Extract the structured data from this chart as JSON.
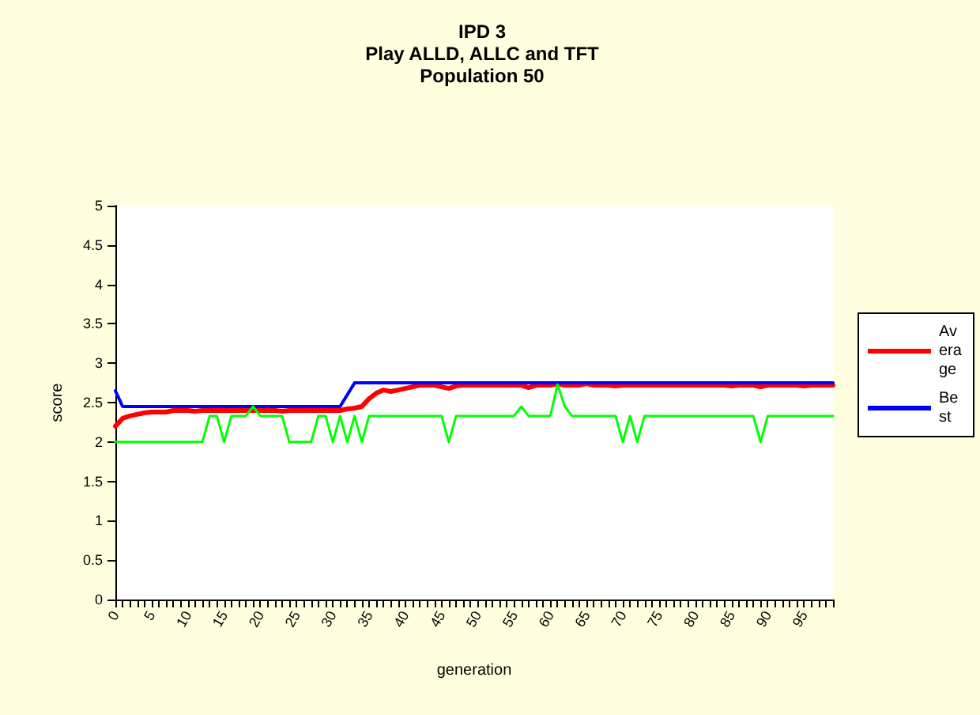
{
  "chart_data": {
    "type": "line",
    "title": "IPD 3\nPlay ALLD, ALLC and TFT\nPopulation 50",
    "xlabel": "generation",
    "ylabel": "score",
    "categories": [
      "0",
      null,
      null,
      null,
      null,
      "5",
      null,
      null,
      null,
      null,
      "10",
      null,
      null,
      null,
      null,
      "15",
      null,
      null,
      null,
      null,
      "20",
      null,
      null,
      null,
      null,
      "25",
      null,
      null,
      null,
      null,
      "30",
      null,
      null,
      null,
      null,
      "35",
      null,
      null,
      null,
      null,
      "40",
      null,
      null,
      null,
      null,
      "45",
      null,
      null,
      null,
      null,
      "50",
      null,
      null,
      null,
      null,
      "55",
      null,
      null,
      null,
      null,
      "60",
      null,
      null,
      null,
      null,
      "65",
      null,
      null,
      null,
      null,
      "70",
      null,
      null,
      null,
      null,
      "75",
      null,
      null,
      null,
      null,
      "80",
      null,
      null,
      null,
      null,
      "85",
      null,
      null,
      null,
      null,
      "90",
      null,
      null,
      null,
      null,
      "95",
      null,
      null,
      null,
      null
    ],
    "series": [
      {
        "name": "Average",
        "color": "#ff0000",
        "values": [
          2.2,
          2.3,
          2.33,
          2.35,
          2.37,
          2.38,
          2.38,
          2.38,
          2.4,
          2.4,
          2.4,
          2.39,
          2.4,
          2.4,
          2.4,
          2.4,
          2.4,
          2.4,
          2.4,
          2.4,
          2.4,
          2.4,
          2.4,
          2.39,
          2.4,
          2.4,
          2.4,
          2.4,
          2.4,
          2.4,
          2.4,
          2.4,
          2.42,
          2.43,
          2.45,
          2.55,
          2.62,
          2.66,
          2.64,
          2.66,
          2.68,
          2.7,
          2.72,
          2.72,
          2.72,
          2.7,
          2.68,
          2.71,
          2.72,
          2.72,
          2.72,
          2.72,
          2.72,
          2.72,
          2.72,
          2.72,
          2.72,
          2.69,
          2.72,
          2.72,
          2.72,
          2.74,
          2.72,
          2.72,
          2.72,
          2.74,
          2.72,
          2.72,
          2.72,
          2.71,
          2.72,
          2.72,
          2.72,
          2.72,
          2.72,
          2.72,
          2.72,
          2.72,
          2.72,
          2.72,
          2.72,
          2.72,
          2.72,
          2.72,
          2.72,
          2.71,
          2.72,
          2.72,
          2.72,
          2.7,
          2.72,
          2.72,
          2.72,
          2.72,
          2.72,
          2.71,
          2.72,
          2.72,
          2.72,
          2.72
        ]
      },
      {
        "name": "Best",
        "color": "#0000ff",
        "values": [
          2.65,
          2.45,
          2.45,
          2.45,
          2.45,
          2.45,
          2.45,
          2.45,
          2.45,
          2.45,
          2.45,
          2.45,
          2.45,
          2.45,
          2.45,
          2.45,
          2.45,
          2.45,
          2.45,
          2.45,
          2.45,
          2.45,
          2.45,
          2.45,
          2.45,
          2.45,
          2.45,
          2.45,
          2.45,
          2.45,
          2.45,
          2.45,
          2.6,
          2.75,
          2.75,
          2.75,
          2.75,
          2.75,
          2.75,
          2.75,
          2.75,
          2.75,
          2.75,
          2.75,
          2.75,
          2.75,
          2.75,
          2.75,
          2.75,
          2.75,
          2.75,
          2.75,
          2.75,
          2.75,
          2.75,
          2.75,
          2.75,
          2.75,
          2.75,
          2.75,
          2.75,
          2.75,
          2.75,
          2.75,
          2.75,
          2.75,
          2.75,
          2.75,
          2.75,
          2.75,
          2.75,
          2.75,
          2.75,
          2.75,
          2.75,
          2.75,
          2.75,
          2.75,
          2.75,
          2.75,
          2.75,
          2.75,
          2.75,
          2.75,
          2.75,
          2.75,
          2.75,
          2.75,
          2.75,
          2.75,
          2.75,
          2.75,
          2.75,
          2.75,
          2.75,
          2.75,
          2.75,
          2.75,
          2.75,
          2.75
        ]
      },
      {
        "color": "#00ff00",
        "values": [
          2,
          2,
          2,
          2,
          2,
          2,
          2,
          2,
          2,
          2,
          2,
          2,
          2,
          2.33,
          2.33,
          2,
          2.33,
          2.33,
          2.33,
          2.45,
          2.33,
          2.33,
          2.33,
          2.33,
          2,
          2,
          2,
          2,
          2.33,
          2.33,
          2,
          2.33,
          2,
          2.33,
          2,
          2.33,
          2.33,
          2.33,
          2.33,
          2.33,
          2.33,
          2.33,
          2.33,
          2.33,
          2.33,
          2.33,
          2,
          2.33,
          2.33,
          2.33,
          2.33,
          2.33,
          2.33,
          2.33,
          2.33,
          2.33,
          2.45,
          2.33,
          2.33,
          2.33,
          2.33,
          2.73,
          2.45,
          2.33,
          2.33,
          2.33,
          2.33,
          2.33,
          2.33,
          2.33,
          2,
          2.33,
          2,
          2.33,
          2.33,
          2.33,
          2.33,
          2.33,
          2.33,
          2.33,
          2.33,
          2.33,
          2.33,
          2.33,
          2.33,
          2.33,
          2.33,
          2.33,
          2.33,
          2,
          2.33,
          2.33,
          2.33,
          2.33,
          2.33,
          2.33,
          2.33,
          2.33,
          2.33,
          2.33
        ]
      }
    ],
    "ylim": [
      0,
      5
    ],
    "yticks": [
      0,
      0.5,
      1,
      1.5,
      2,
      2.5,
      3,
      3.5,
      4,
      4.5,
      5
    ],
    "grid": false,
    "legend": "right",
    "marker": "none",
    "line_style": "solid"
  }
}
